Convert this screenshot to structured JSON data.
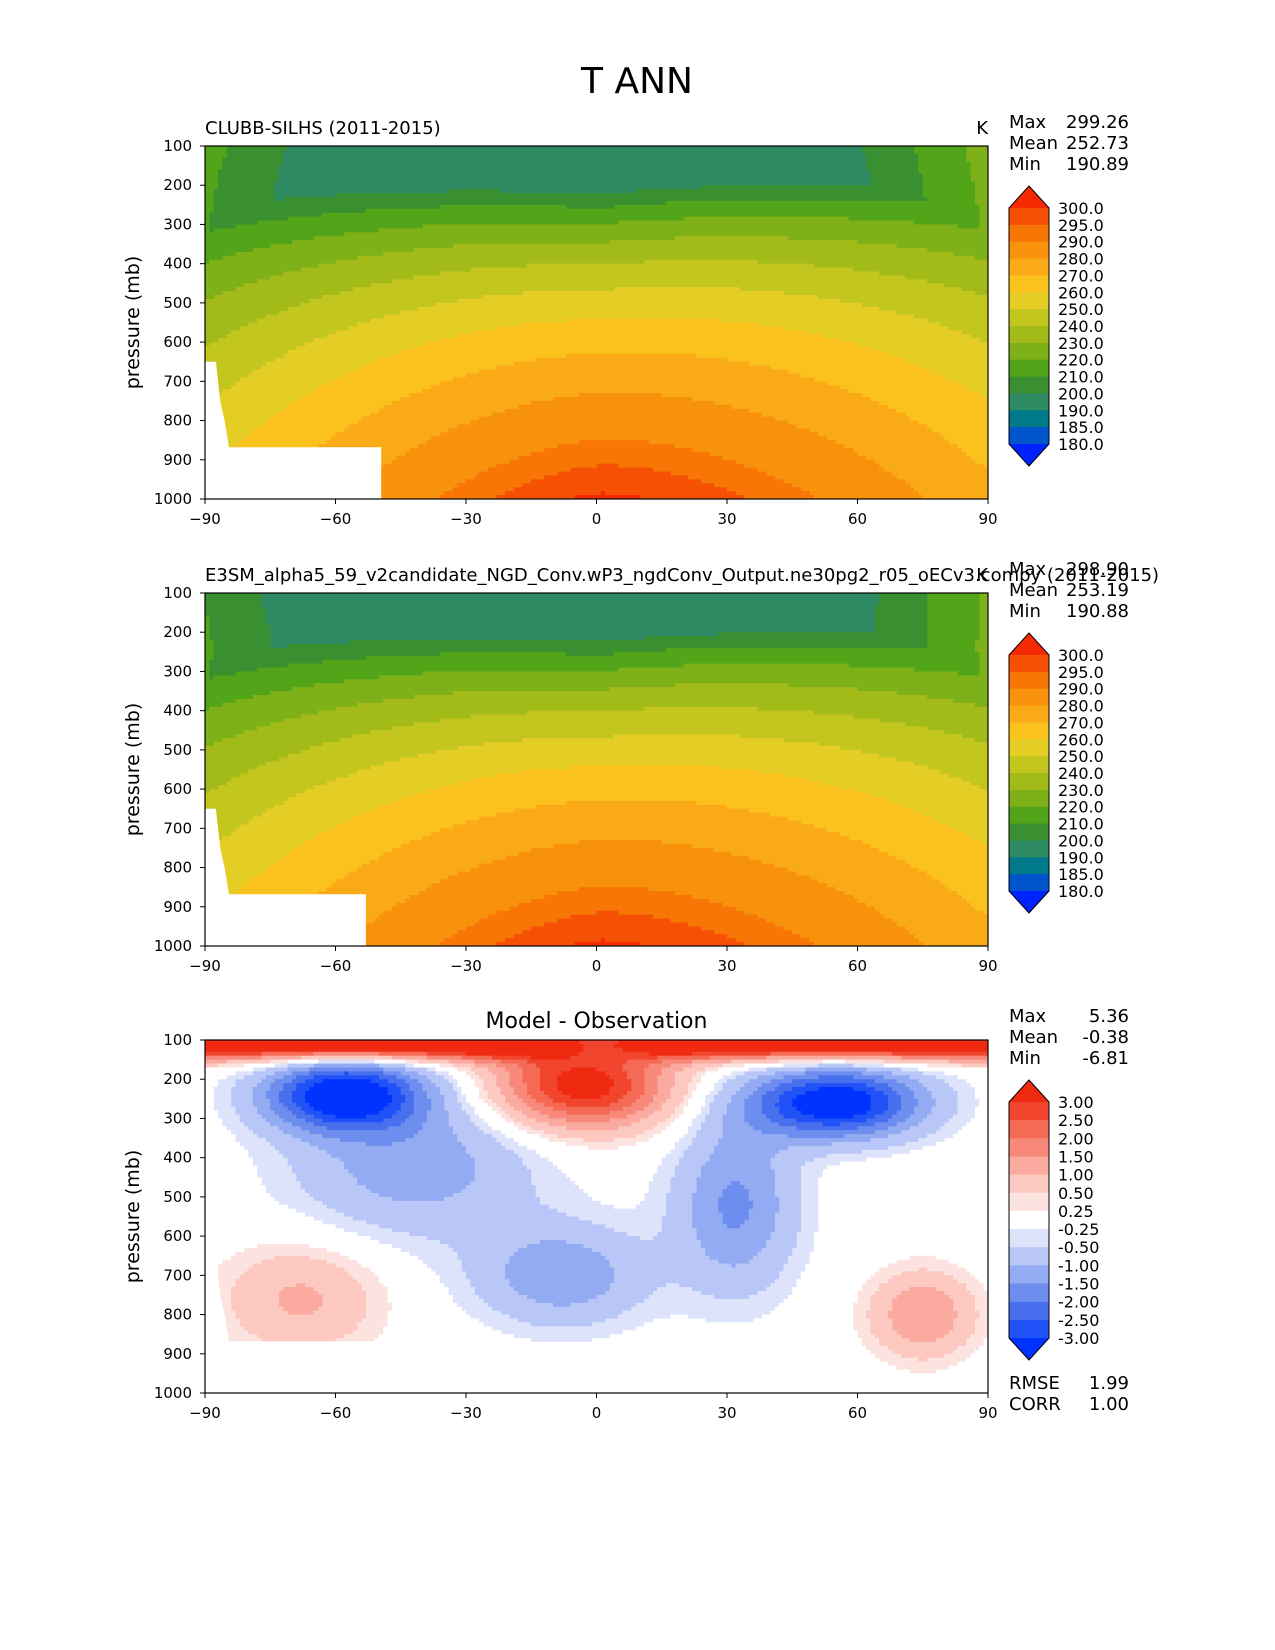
{
  "figure": {
    "title": "T ANN"
  },
  "chart_data": [
    {
      "type": "heatmap",
      "subtype": "filled-contour",
      "title": "CLUBB-SILHS (2011-2015)",
      "units": "K",
      "xlabel": "",
      "ylabel": "pressure (mb)",
      "xlim": [
        -90,
        90
      ],
      "ylim": [
        1000,
        100
      ],
      "xticks": [
        "−90",
        "−60",
        "−30",
        "0",
        "30",
        "60",
        "90"
      ],
      "xtick_values": [
        -90,
        -60,
        -30,
        0,
        30,
        60,
        90
      ],
      "yticks": [
        "100",
        "200",
        "300",
        "400",
        "500",
        "600",
        "700",
        "800",
        "900",
        "1000"
      ],
      "ytick_values": [
        100,
        200,
        300,
        400,
        500,
        600,
        700,
        800,
        900,
        1000
      ],
      "stats": [
        {
          "label": "Max",
          "value": "299.26"
        },
        {
          "label": "Mean",
          "value": "252.73"
        },
        {
          "label": "Min",
          "value": "190.89"
        }
      ],
      "colorbar_levels": [
        "300.0",
        "295.0",
        "290.0",
        "280.0",
        "270.0",
        "260.0",
        "250.0",
        "240.0",
        "230.0",
        "220.0",
        "210.0",
        "200.0",
        "190.0",
        "185.0",
        "180.0"
      ]
    },
    {
      "type": "heatmap",
      "subtype": "filled-contour",
      "title": "E3SM_alpha5_59_v2candidate_NGD_Conv.wP3_ngdConv_Output.ne30pg2_r05_oECv3.compy (2011-2015)",
      "units": "K",
      "xlabel": "",
      "ylabel": "pressure (mb)",
      "xlim": [
        -90,
        90
      ],
      "ylim": [
        1000,
        100
      ],
      "xticks": [
        "−90",
        "−60",
        "−30",
        "0",
        "30",
        "60",
        "90"
      ],
      "xtick_values": [
        -90,
        -60,
        -30,
        0,
        30,
        60,
        90
      ],
      "yticks": [
        "100",
        "200",
        "300",
        "400",
        "500",
        "600",
        "700",
        "800",
        "900",
        "1000"
      ],
      "ytick_values": [
        100,
        200,
        300,
        400,
        500,
        600,
        700,
        800,
        900,
        1000
      ],
      "stats": [
        {
          "label": "Max",
          "value": "298.90"
        },
        {
          "label": "Mean",
          "value": "253.19"
        },
        {
          "label": "Min",
          "value": "190.88"
        }
      ],
      "colorbar_levels": [
        "300.0",
        "295.0",
        "290.0",
        "280.0",
        "270.0",
        "260.0",
        "250.0",
        "240.0",
        "230.0",
        "220.0",
        "210.0",
        "200.0",
        "190.0",
        "185.0",
        "180.0"
      ]
    },
    {
      "type": "heatmap",
      "subtype": "filled-contour",
      "title": "Model - Observation",
      "xlabel": "",
      "ylabel": "pressure (mb)",
      "xlim": [
        -90,
        90
      ],
      "ylim": [
        1000,
        100
      ],
      "xticks": [
        "−90",
        "−60",
        "−30",
        "0",
        "30",
        "60",
        "90"
      ],
      "xtick_values": [
        -90,
        -60,
        -30,
        0,
        30,
        60,
        90
      ],
      "yticks": [
        "100",
        "200",
        "300",
        "400",
        "500",
        "600",
        "700",
        "800",
        "900",
        "1000"
      ],
      "ytick_values": [
        100,
        200,
        300,
        400,
        500,
        600,
        700,
        800,
        900,
        1000
      ],
      "stats": [
        {
          "label": "Max",
          "value": "5.36"
        },
        {
          "label": "Mean",
          "value": "-0.38"
        },
        {
          "label": "Min",
          "value": "-6.81"
        }
      ],
      "extra_stats": [
        {
          "label": "RMSE",
          "value": "1.99"
        },
        {
          "label": "CORR",
          "value": "1.00"
        }
      ],
      "colorbar_levels": [
        "3.00",
        "2.50",
        "2.00",
        "1.50",
        "1.00",
        "0.50",
        "0.25",
        "-0.25",
        "-0.50",
        "-1.00",
        "-1.50",
        "-2.00",
        "-2.50",
        "-3.00"
      ]
    }
  ],
  "colors": {
    "abs_bands": [
      "#0022ff",
      "#0055cc",
      "#007a8a",
      "#2e8a62",
      "#3a9030",
      "#52a418",
      "#7eb018",
      "#a3bb18",
      "#c4c620",
      "#e4cd24",
      "#fbc21e",
      "#faaa16",
      "#f8920c",
      "#f77606",
      "#f65004",
      "#f62a02"
    ],
    "diff_bands": [
      "#0033ff",
      "#2052f7",
      "#4870ee",
      "#6d8eee",
      "#93abf2",
      "#b8c7f7",
      "#dce3fb",
      "#ffffff",
      "#fde3df",
      "#fcc8c0",
      "#faaa9e",
      "#f7887a",
      "#f46a55",
      "#f2452d",
      "#f02a10"
    ]
  }
}
